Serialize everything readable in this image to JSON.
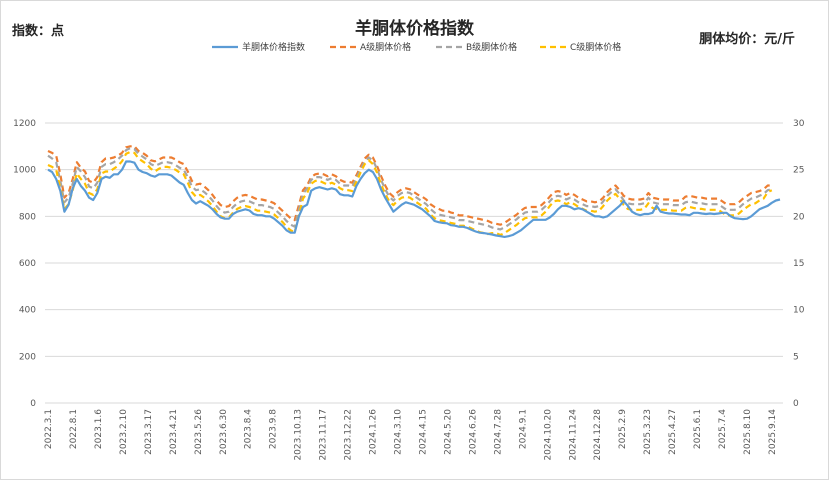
{
  "chart_data": {
    "type": "line",
    "title": "羊胴体价格指数",
    "left_axis_label": "指数：点",
    "right_axis_label": "胴体均价：元/斤",
    "ylim_left": [
      0,
      1200
    ],
    "ylim_right": [
      0,
      30
    ],
    "yticks_left": [
      "0",
      "200",
      "400",
      "600",
      "800",
      "1000",
      "1200"
    ],
    "yticks_right": [
      "0",
      "5",
      "10",
      "15",
      "20",
      "25",
      "30"
    ],
    "x_tick_labels": [
      "2022.3.1",
      "2022.8.1",
      "2023.1.6",
      "2023.2.10",
      "2023.3.17",
      "2023.4.21",
      "2023.5.26",
      "2023.6.30",
      "2023.8.4",
      "2023.9.8",
      "2023.10.13",
      "2023.11.17",
      "2023.12.22",
      "2024.1.26",
      "2024.3.10",
      "2024.4.15",
      "2024.5.20",
      "2024.6.26",
      "2024.7.28",
      "2024.9.1",
      "2024.10.20",
      "2024.11.24",
      "2024.12.28",
      "2025.2.9",
      "2025.3.23",
      "2025.4.27",
      "2025.6.1",
      "2025.7.4",
      "2025.8.10",
      "2025.9.14"
    ],
    "legend_position": "top",
    "grid": "horizontal",
    "series": [
      {
        "name": "羊胴体价格指数",
        "axis": "left",
        "style": "solid",
        "color": "#5b9bd5",
        "values": [
          1000,
          990,
          960,
          910,
          820,
          850,
          920,
          960,
          930,
          910,
          880,
          870,
          900,
          960,
          970,
          965,
          980,
          980,
          1000,
          1035,
          1035,
          1030,
          1000,
          990,
          985,
          975,
          970,
          980,
          980,
          980,
          975,
          960,
          945,
          935,
          900,
          870,
          855,
          865,
          855,
          845,
          830,
          810,
          795,
          790,
          790,
          810,
          820,
          825,
          830,
          825,
          810,
          805,
          805,
          800,
          800,
          790,
          775,
          760,
          740,
          730,
          730,
          800,
          840,
          850,
          910,
          920,
          925,
          920,
          915,
          920,
          915,
          895,
          890,
          890,
          885,
          930,
          960,
          985,
          1000,
          990,
          960,
          915,
          880,
          850,
          820,
          835,
          850,
          860,
          855,
          850,
          840,
          830,
          815,
          800,
          780,
          775,
          772,
          770,
          762,
          760,
          755,
          755,
          750,
          742,
          735,
          730,
          728,
          725,
          722,
          718,
          715,
          712,
          715,
          720,
          730,
          740,
          755,
          770,
          785,
          785,
          785,
          785,
          795,
          810,
          830,
          845,
          845,
          840,
          830,
          835,
          830,
          820,
          810,
          800,
          800,
          795,
          800,
          815,
          830,
          845,
          865,
          845,
          820,
          810,
          805,
          810,
          810,
          815,
          845,
          820,
          815,
          812,
          812,
          810,
          808,
          808,
          805,
          815,
          815,
          812,
          810,
          812,
          810,
          812,
          815,
          815,
          800,
          792,
          790,
          788,
          790,
          800,
          815,
          830,
          838,
          845,
          858,
          868,
          872
        ]
      },
      {
        "name": "A级胴体价格",
        "axis": "right",
        "style": "dashed",
        "color": "#ed7d31",
        "values": [
          27.0,
          26.8,
          26.5,
          24.5,
          22.0,
          22.5,
          24.0,
          25.8,
          25.2,
          24.8,
          23.8,
          23.6,
          24.2,
          25.8,
          26.2,
          26.2,
          26.3,
          26.5,
          26.8,
          27.4,
          27.5,
          27.5,
          27.0,
          26.8,
          26.5,
          26.0,
          25.9,
          26.1,
          26.3,
          26.3,
          26.3,
          26.1,
          25.8,
          25.6,
          24.8,
          23.8,
          23.4,
          23.5,
          23.2,
          22.8,
          22.3,
          21.7,
          21.2,
          21.0,
          21.1,
          21.6,
          22.0,
          22.2,
          22.3,
          22.2,
          22.0,
          21.8,
          21.8,
          21.7,
          21.6,
          21.4,
          21.0,
          20.6,
          20.2,
          19.8,
          19.6,
          21.2,
          22.8,
          23.3,
          24.2,
          24.5,
          24.6,
          24.5,
          24.3,
          24.5,
          24.3,
          23.9,
          23.7,
          23.7,
          23.6,
          24.4,
          25.3,
          26.2,
          26.6,
          26.3,
          25.4,
          24.3,
          23.3,
          22.5,
          22.1,
          22.6,
          22.9,
          23.0,
          22.9,
          22.6,
          22.3,
          22.1,
          21.8,
          21.3,
          21.0,
          20.8,
          20.6,
          20.6,
          20.4,
          20.3,
          20.1,
          20.1,
          20.0,
          19.9,
          19.8,
          19.7,
          19.6,
          19.5,
          19.3,
          19.2,
          19.1,
          19.3,
          19.6,
          19.9,
          20.2,
          20.6,
          20.9,
          21.0,
          21.0,
          21.0,
          21.2,
          21.6,
          22.1,
          22.6,
          22.7,
          22.6,
          22.3,
          22.5,
          22.3,
          22.0,
          21.8,
          21.6,
          21.6,
          21.5,
          21.6,
          22.0,
          22.6,
          23.0,
          23.3,
          22.8,
          22.2,
          21.9,
          21.8,
          21.8,
          21.8,
          21.9,
          22.5,
          22.0,
          21.9,
          21.8,
          21.8,
          21.8,
          21.7,
          21.7,
          21.7,
          22.1,
          22.2,
          22.1,
          22.0,
          22.0,
          21.9,
          21.9,
          21.9,
          21.9,
          21.6,
          21.3,
          21.3,
          21.3,
          21.5,
          21.9,
          22.2,
          22.5,
          22.6,
          22.7,
          22.9,
          23.3,
          23.3
        ]
      },
      {
        "name": "B级胴体价格",
        "axis": "right",
        "style": "dashed",
        "color": "#a5a5a5",
        "values": [
          26.5,
          26.2,
          25.8,
          23.8,
          21.5,
          22.0,
          23.5,
          25.3,
          24.8,
          24.2,
          23.2,
          23.0,
          23.6,
          25.3,
          25.6,
          25.6,
          25.8,
          26.1,
          26.5,
          27.1,
          27.3,
          27.2,
          26.7,
          26.4,
          26.1,
          25.6,
          25.4,
          25.6,
          25.8,
          25.8,
          25.7,
          25.5,
          25.2,
          25.0,
          24.2,
          23.2,
          22.8,
          22.9,
          22.6,
          22.2,
          21.7,
          21.1,
          20.6,
          20.4,
          20.5,
          21.0,
          21.4,
          21.6,
          21.7,
          21.6,
          21.4,
          21.2,
          21.2,
          21.1,
          21.0,
          20.8,
          20.4,
          20.0,
          19.5,
          19.1,
          18.9,
          20.7,
          22.4,
          23.0,
          23.9,
          24.2,
          24.2,
          24.1,
          23.9,
          24.1,
          23.9,
          23.5,
          23.3,
          23.3,
          23.2,
          24.1,
          25.0,
          25.9,
          26.3,
          26.0,
          25.1,
          23.9,
          22.9,
          22.1,
          21.7,
          22.2,
          22.5,
          22.6,
          22.5,
          22.2,
          21.9,
          21.6,
          21.3,
          20.8,
          20.4,
          20.2,
          20.1,
          20.0,
          19.9,
          19.8,
          19.6,
          19.6,
          19.5,
          19.4,
          19.3,
          19.2,
          19.1,
          19.0,
          18.8,
          18.7,
          18.6,
          18.8,
          19.1,
          19.4,
          19.7,
          20.1,
          20.4,
          20.5,
          20.5,
          20.5,
          20.7,
          21.1,
          21.6,
          22.1,
          22.2,
          22.1,
          21.8,
          22.0,
          21.8,
          21.5,
          21.3,
          21.1,
          21.1,
          21.0,
          21.1,
          21.6,
          22.2,
          22.6,
          22.9,
          22.4,
          21.7,
          21.4,
          21.3,
          21.3,
          21.3,
          21.4,
          22.0,
          21.5,
          21.4,
          21.3,
          21.3,
          21.3,
          21.2,
          21.2,
          21.2,
          21.5,
          21.6,
          21.5,
          21.4,
          21.4,
          21.3,
          21.3,
          21.3,
          21.3,
          21.0,
          20.7,
          20.7,
          20.7,
          20.9,
          21.3,
          21.6,
          21.9,
          22.0,
          22.2,
          22.4,
          22.8,
          22.9
        ]
      },
      {
        "name": "C级胴体价格",
        "axis": "right",
        "style": "dashed",
        "color": "#ffc000",
        "values": [
          25.5,
          25.3,
          25.0,
          23.0,
          20.8,
          21.3,
          22.8,
          24.6,
          24.0,
          23.5,
          22.5,
          22.3,
          22.9,
          24.6,
          24.8,
          24.8,
          25.1,
          25.4,
          25.9,
          26.7,
          26.9,
          26.8,
          26.2,
          25.9,
          25.6,
          25.1,
          24.8,
          25.1,
          25.3,
          25.3,
          25.2,
          25.0,
          24.7,
          24.5,
          23.6,
          22.6,
          22.1,
          22.3,
          22.0,
          21.6,
          21.1,
          20.5,
          20.0,
          19.8,
          19.9,
          20.4,
          20.8,
          21.0,
          21.1,
          21.0,
          20.8,
          20.6,
          20.6,
          20.5,
          20.4,
          20.2,
          19.8,
          19.4,
          18.9,
          18.5,
          18.3,
          20.1,
          21.9,
          22.5,
          23.5,
          23.8,
          23.8,
          23.6,
          23.4,
          23.6,
          23.4,
          23.0,
          22.8,
          22.8,
          22.7,
          23.7,
          24.7,
          25.6,
          26.0,
          25.6,
          24.7,
          23.4,
          22.4,
          21.6,
          21.2,
          21.7,
          22.0,
          22.1,
          22.0,
          21.7,
          21.4,
          21.1,
          20.8,
          20.2,
          19.8,
          19.6,
          19.5,
          19.4,
          19.3,
          19.2,
          19.0,
          19.0,
          18.9,
          18.7,
          18.5,
          18.3,
          18.2,
          18.1,
          18.2,
          18.2,
          18.0,
          18.2,
          18.5,
          18.8,
          19.1,
          19.5,
          19.8,
          19.9,
          19.9,
          19.9,
          20.1,
          20.5,
          21.1,
          21.6,
          21.7,
          21.6,
          21.3,
          21.5,
          21.3,
          21.0,
          20.8,
          20.6,
          20.6,
          20.5,
          20.6,
          21.1,
          21.7,
          22.1,
          22.4,
          21.9,
          21.2,
          20.8,
          20.7,
          20.7,
          20.7,
          20.8,
          21.4,
          20.9,
          20.8,
          20.7,
          20.7,
          20.7,
          20.6,
          20.6,
          20.6,
          20.9,
          21.0,
          20.9,
          20.8,
          20.8,
          20.7,
          20.7,
          20.7,
          20.7,
          20.4,
          20.1,
          20.1,
          20.1,
          20.3,
          20.7,
          21.0,
          21.3,
          21.4,
          21.7,
          21.9,
          22.6,
          22.8
        ]
      }
    ]
  }
}
